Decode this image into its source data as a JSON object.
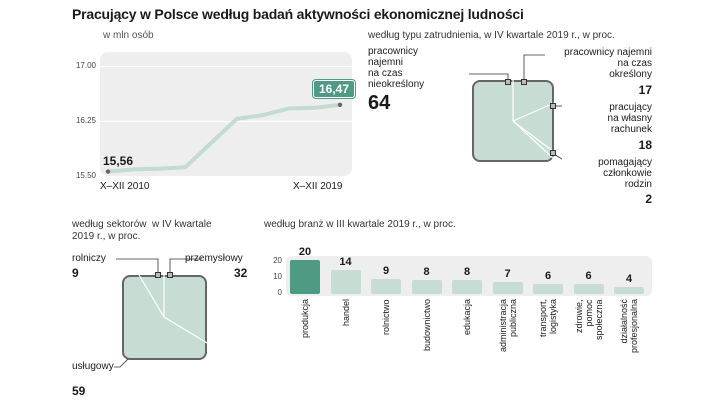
{
  "title": "Pracujący w Polsce  według badań aktywności ekonomicznej ludności",
  "colors": {
    "accent": "#4f9a85",
    "light": "#c7ddd3",
    "panel": "#eeeeee"
  },
  "chart_data": [
    {
      "type": "line",
      "unit": "w mln osób",
      "x_start_label": "X–XII 2010",
      "x_end_label": "X–XII 2019",
      "first_value_label": "15,56",
      "last_value_label": "16,47",
      "y_tick_labels": [
        "17.00",
        "16.25",
        "15.50"
      ],
      "ylim": [
        15.5,
        17.0
      ],
      "values": [
        15.56,
        15.59,
        15.6,
        15.62,
        15.95,
        16.28,
        16.33,
        16.42,
        16.43,
        16.47
      ]
    },
    {
      "type": "pie",
      "subtitle": "według typu zatrudnienia, w IV kwartale  2019 r., w proc.",
      "segments": [
        {
          "label": "pracownicy\nnajemni\nna czas\nnieokreślony",
          "value": 64
        },
        {
          "label": "pracownicy najemni\nna czas\nokreślony",
          "value": 17
        },
        {
          "label": "pracujący\nna własny\nrachunek",
          "value": 18
        },
        {
          "label": "pomagający\nczłonkowie\nrodzin",
          "value": 2
        }
      ]
    },
    {
      "type": "pie",
      "subtitle": "według sektorów  w IV kwartale\n2019 r., w proc.",
      "segments": [
        {
          "label": "rolniczy",
          "value": 9
        },
        {
          "label": "przemysłowy",
          "value": 32
        },
        {
          "label": "usługowy",
          "value": 59
        }
      ]
    },
    {
      "type": "bar",
      "subtitle": "według branż w III kwartale 2019 r., w proc.",
      "y_tick_labels": [
        "20",
        "10",
        "0"
      ],
      "ylim": [
        0,
        20
      ],
      "categories": [
        "produkcja",
        "handel",
        "rolnictwo",
        "budownictwo",
        "edukacja",
        "administracja\npubliczna",
        "transport,\nlogistyka",
        "zdrowie,\npomoc\nspołeczna",
        "działalność\nprofesjonalna"
      ],
      "values": [
        20,
        14,
        9,
        8,
        8,
        7,
        6,
        6,
        4
      ]
    }
  ]
}
